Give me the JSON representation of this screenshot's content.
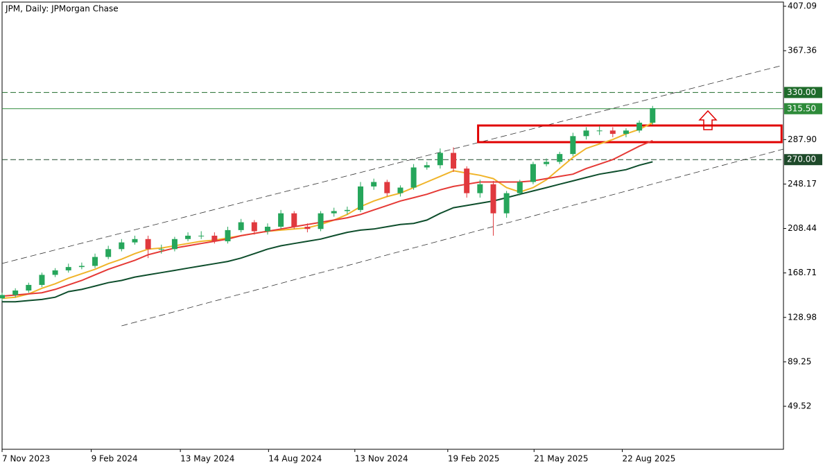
{
  "chart_data": {
    "type": "candlestick",
    "title": "JPM, Daily:  JPMorgan Chase",
    "x": [
      "2023-11-07",
      "2023-11-21",
      "2023-12-05",
      "2023-12-19",
      "2024-01-02",
      "2024-01-16",
      "2024-01-30",
      "2024-02-13",
      "2024-02-27",
      "2024-03-12",
      "2024-03-26",
      "2024-04-09",
      "2024-04-23",
      "2024-05-07",
      "2024-05-21",
      "2024-06-04",
      "2024-06-18",
      "2024-07-02",
      "2024-07-16",
      "2024-07-30",
      "2024-08-13",
      "2024-08-27",
      "2024-09-10",
      "2024-09-24",
      "2024-10-08",
      "2024-10-22",
      "2024-11-05",
      "2024-11-19",
      "2024-12-03",
      "2024-12-17",
      "2024-12-31",
      "2025-01-14",
      "2025-01-28",
      "2025-02-11",
      "2025-02-25",
      "2025-03-11",
      "2025-03-25",
      "2025-04-08",
      "2025-04-22",
      "2025-05-06",
      "2025-05-20",
      "2025-06-03",
      "2025-06-17",
      "2025-07-01",
      "2025-07-15",
      "2025-07-29",
      "2025-08-12",
      "2025-08-26",
      "2025-09-09",
      "2025-09-23"
    ],
    "open": [
      146,
      149,
      153,
      158,
      167,
      171,
      174,
      175,
      183,
      190,
      196,
      199,
      190,
      190,
      199,
      202,
      202,
      197,
      207,
      214,
      206,
      210,
      222,
      210,
      208,
      222,
      224,
      225,
      246,
      250,
      240,
      245,
      263,
      265,
      276,
      262,
      240,
      248,
      222,
      240,
      250,
      266,
      268,
      275,
      291,
      296,
      296,
      293,
      296,
      303
    ],
    "high": [
      151,
      155,
      160,
      169,
      173,
      177,
      178,
      186,
      193,
      199,
      202,
      202,
      194,
      201,
      205,
      206,
      205,
      210,
      217,
      216,
      213,
      225,
      224,
      213,
      224,
      227,
      228,
      250,
      253,
      252,
      247,
      266,
      268,
      280,
      281,
      264,
      252,
      251,
      242,
      252,
      268,
      271,
      277,
      294,
      299,
      300,
      299,
      298,
      305,
      318
    ],
    "low": [
      144,
      147,
      151,
      156,
      165,
      169,
      172,
      173,
      181,
      188,
      194,
      182,
      186,
      188,
      197,
      199,
      195,
      195,
      205,
      203,
      203,
      208,
      208,
      205,
      206,
      219,
      221,
      223,
      243,
      237,
      237,
      243,
      261,
      262,
      259,
      236,
      236,
      202,
      218,
      238,
      248,
      264,
      266,
      273,
      288,
      292,
      290,
      290,
      294,
      301
    ],
    "close": [
      149,
      153,
      158,
      167,
      171,
      174,
      175,
      183,
      190,
      196,
      199,
      190,
      190,
      199,
      202,
      202,
      197,
      207,
      214,
      206,
      210,
      222,
      210,
      208,
      222,
      224,
      225,
      246,
      250,
      240,
      245,
      263,
      265,
      276,
      262,
      240,
      248,
      222,
      240,
      250,
      266,
      268,
      275,
      291,
      296,
      296,
      293,
      296,
      303,
      316
    ],
    "up_color": "#26a65b",
    "down_color": "#e0393e",
    "series": [
      {
        "color": "#f0b429",
        "values": [
          146,
          147,
          150,
          155,
          159,
          164,
          168,
          172,
          177,
          181,
          186,
          190,
          191,
          193,
          195,
          197,
          198,
          200,
          202,
          204,
          206,
          207,
          208,
          209,
          212,
          216,
          221,
          228,
          233,
          237,
          240,
          245,
          250,
          255,
          260,
          258,
          256,
          253,
          245,
          241,
          245,
          252,
          262,
          272,
          280,
          284,
          288,
          293,
          297,
          303
        ]
      },
      {
        "color": "#e53935",
        "values": [
          148,
          149,
          150,
          151,
          154,
          158,
          162,
          167,
          172,
          176,
          180,
          185,
          188,
          191,
          193,
          195,
          197,
          199,
          202,
          204,
          206,
          208,
          210,
          212,
          214,
          216,
          218,
          221,
          225,
          229,
          233,
          236,
          239,
          243,
          246,
          248,
          250,
          250,
          250,
          250,
          251,
          253,
          255,
          257,
          262,
          266,
          270,
          276,
          282,
          287
        ]
      },
      {
        "color": "#0d4d2b",
        "values": [
          143,
          143,
          144,
          145,
          147,
          152,
          154,
          157,
          160,
          162,
          165,
          167,
          169,
          171,
          173,
          175,
          177,
          179,
          182,
          186,
          190,
          193,
          195,
          197,
          199,
          202,
          205,
          207,
          208,
          210,
          212,
          213,
          216,
          222,
          227,
          229,
          231,
          233,
          236,
          239,
          242,
          245,
          248,
          251,
          254,
          257,
          259,
          261,
          265,
          268
        ]
      }
    ],
    "xlim": [
      "2023-11-07",
      "2026-02-08"
    ],
    "ylim": [
      11.1,
      410.8
    ],
    "xticks": [
      {
        "value": "2023-11-07",
        "label": "7 Nov 2023"
      },
      {
        "value": "2024-02-09",
        "label": "9 Feb 2024"
      },
      {
        "value": "2024-05-13",
        "label": "13 May 2024"
      },
      {
        "value": "2024-08-14",
        "label": "14 Aug 2024"
      },
      {
        "value": "2024-11-13",
        "label": "13 Nov 2024"
      },
      {
        "value": "2025-02-19",
        "label": "19 Feb 2025"
      },
      {
        "value": "2025-05-21",
        "label": "21 May 2025"
      },
      {
        "value": "2025-08-22",
        "label": "22 Aug 2025"
      }
    ],
    "yticks": [
      407.09,
      367.36,
      {
        "value": 287.9,
        "label": "287.90"
      },
      248.17,
      208.44,
      168.71,
      128.98,
      89.25,
      49.52
    ],
    "levels": [
      {
        "value": 330,
        "label": "330.00",
        "dashed": true,
        "color": "#1e6b2a"
      },
      {
        "value": 315.5,
        "label": "315.50",
        "dashed": false,
        "color": "#2e8b3a"
      },
      {
        "value": 270,
        "label": "270.00",
        "dashed": true,
        "color": "#1e4a2a"
      }
    ],
    "trendlines": [
      {
        "x": [
          "2023-11-07",
          "2026-02-05"
        ],
        "y": [
          177.2,
          353.8
        ],
        "color": "#333333"
      },
      {
        "x": [
          "2024-03-12",
          "2026-02-08"
        ],
        "y": [
          121.4,
          279.4
        ],
        "color": "#333333"
      }
    ],
    "zone": {
      "x": [
        "2025-03-23",
        "2026-02-06"
      ],
      "y": [
        285.6,
        300.5
      ],
      "color": "#e00000"
    }
  }
}
